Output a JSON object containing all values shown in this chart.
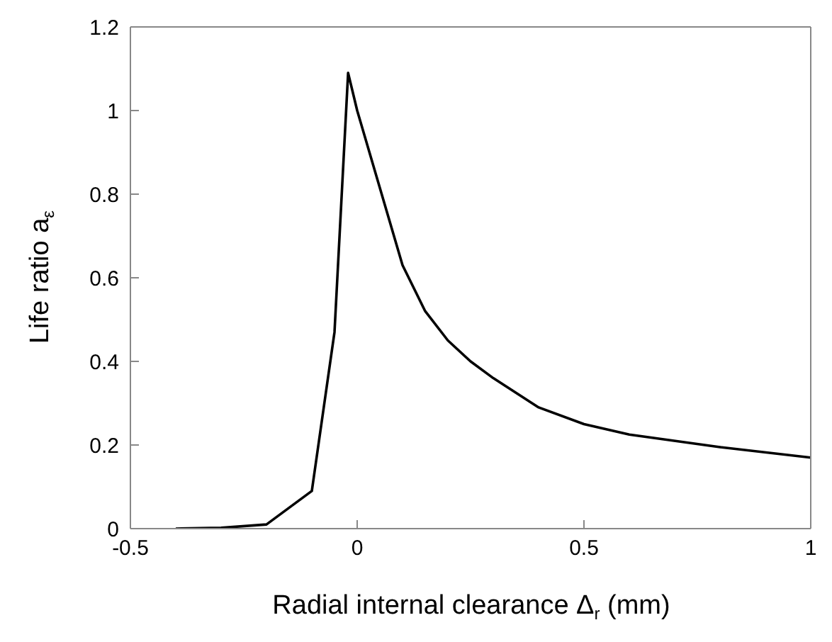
{
  "chart_data": {
    "type": "line",
    "xlabel": "Radial internal clearance Δ$_{r}$ (mm)",
    "ylabel": "Life ratio a$_{ε}$",
    "x": [
      -0.4,
      -0.3,
      -0.2,
      -0.1,
      -0.05,
      -0.02,
      0,
      0.1,
      0.15,
      0.2,
      0.25,
      0.3,
      0.4,
      0.5,
      0.6,
      0.8,
      1
    ],
    "series": [
      {
        "color": "#000000",
        "values": [
          0,
          0.002,
          0.01,
          0.09,
          0.47,
          1.09,
          1.0,
          0.63,
          0.52,
          0.45,
          0.4,
          0.36,
          0.29,
          0.25,
          0.225,
          0.195,
          0.17
        ]
      }
    ],
    "xlim": [
      -0.5,
      1
    ],
    "xticks": [
      -0.5,
      0,
      0.5,
      1
    ],
    "ylim": [
      0,
      1.2
    ],
    "yticks": [
      0,
      0.2,
      0.4,
      0.6,
      0.8,
      1,
      1.2
    ],
    "marker": "none",
    "line_style": "solid"
  }
}
